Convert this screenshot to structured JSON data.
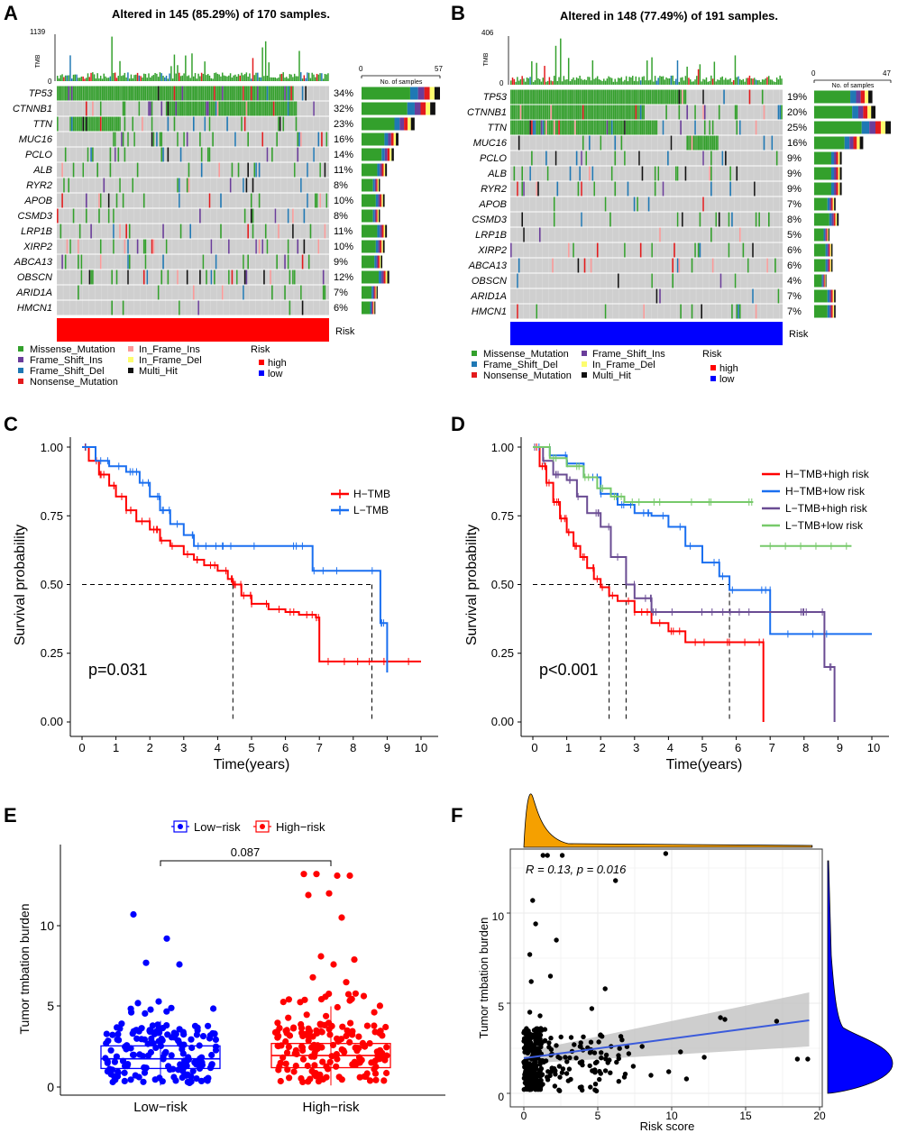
{
  "colors": {
    "missense": "#33a02c",
    "frame_shift_ins": "#6a3d9a",
    "frame_shift_del": "#1f78b4",
    "nonsense": "#e31a1c",
    "in_frame_ins": "#fb9a99",
    "in_frame_del": "#fdfd6e",
    "multi_hit": "#111111",
    "grey_cell": "#cfcfcf",
    "risk_high": "#ff0000",
    "risk_low": "#0000ff",
    "km_red": "#ff0000",
    "km_blue": "#1a6ff0",
    "km_purple": "#6a4c93",
    "km_green": "#77c96a",
    "density_orange": "#f5a000",
    "density_blue": "#0000ff",
    "regression_line": "#3b5bdb",
    "ci_band": "#bdbdbd"
  },
  "chart_data": [
    {
      "panel": "A",
      "type": "heatmap",
      "title": "Altered in 145 (85.29%) of 170 samples.",
      "tmb_label": "TMB",
      "tmb_max": "1139",
      "tmb_min": "0",
      "bar_axis_title": "No. of samples",
      "bar_axis_min": "0",
      "bar_axis_max": "57",
      "genes": [
        "TP53",
        "CTNNB1",
        "TTN",
        "MUC16",
        "PCLO",
        "ALB",
        "RYR2",
        "APOB",
        "CSMD3",
        "LRP1B",
        "XIRP2",
        "ABCA13",
        "OBSCN",
        "ARID1A",
        "HMCN1"
      ],
      "percents": [
        "34%",
        "32%",
        "23%",
        "16%",
        "14%",
        "11%",
        "8%",
        "10%",
        "8%",
        "11%",
        "10%",
        "9%",
        "12%",
        "7%",
        "6%"
      ],
      "risk_label": "Risk",
      "risk_group": "high",
      "legend": {
        "col1": [
          "Missense_Mutation",
          "Frame_Shift_Ins",
          "Frame_Shift_Del",
          "Nonsense_Mutation"
        ],
        "col2": [
          "In_Frame_Ins",
          "In_Frame_Del",
          "Multi_Hit"
        ],
        "risk_title": "Risk",
        "risk_items": [
          "high",
          "low"
        ]
      }
    },
    {
      "panel": "B",
      "type": "heatmap",
      "title": "Altered in 148 (77.49%) of 191 samples.",
      "tmb_label": "TMB",
      "tmb_max": "406",
      "tmb_min": "0",
      "bar_axis_title": "No. of samples",
      "bar_axis_min": "0",
      "bar_axis_max": "47",
      "genes": [
        "TP53",
        "CTNNB1",
        "TTN",
        "MUC16",
        "PCLO",
        "ALB",
        "RYR2",
        "APOB",
        "CSMD3",
        "LRP1B",
        "XIRP2",
        "ABCA13",
        "OBSCN",
        "ARID1A",
        "HMCN1"
      ],
      "percents": [
        "19%",
        "20%",
        "25%",
        "16%",
        "9%",
        "9%",
        "9%",
        "7%",
        "8%",
        "5%",
        "6%",
        "6%",
        "4%",
        "7%",
        "7%"
      ],
      "risk_label": "Risk",
      "risk_group": "low",
      "legend": {
        "col1": [
          "Missense_Mutation",
          "Frame_Shift_Del",
          "Nonsense_Mutation"
        ],
        "col2": [
          "Frame_Shift_Ins",
          "In_Frame_Del",
          "Multi_Hit"
        ],
        "risk_title": "Risk",
        "risk_items": [
          "high",
          "low"
        ]
      }
    },
    {
      "panel": "C",
      "type": "line",
      "xlabel": "Time(years)",
      "ylabel": "Survival probability",
      "xlim": [
        0,
        10.5
      ],
      "ylim": [
        0,
        1
      ],
      "x_ticks": [
        "0",
        "1",
        "2",
        "3",
        "4",
        "5",
        "6",
        "7",
        "8",
        "9",
        "10"
      ],
      "y_ticks": [
        "0.00",
        "0.25",
        "0.50",
        "0.75",
        "1.00"
      ],
      "pvalue": "p=0.031",
      "median_times": [
        4.45,
        8.55
      ],
      "series": [
        {
          "name": "H−TMB",
          "color": "#ff0000",
          "x": [
            0,
            0.2,
            0.5,
            0.8,
            1.0,
            1.3,
            1.6,
            2.0,
            2.3,
            2.6,
            3.0,
            3.3,
            3.6,
            4.0,
            4.3,
            4.45,
            4.7,
            5.0,
            5.5,
            6.0,
            6.4,
            6.9,
            7.0,
            8.0,
            9.0,
            10.0
          ],
          "y": [
            1.0,
            0.95,
            0.9,
            0.86,
            0.82,
            0.77,
            0.73,
            0.7,
            0.66,
            0.64,
            0.61,
            0.59,
            0.57,
            0.55,
            0.52,
            0.5,
            0.46,
            0.43,
            0.41,
            0.4,
            0.39,
            0.38,
            0.22,
            0.22,
            0.22,
            0.22
          ]
        },
        {
          "name": "L−TMB",
          "color": "#1a6ff0",
          "x": [
            0,
            0.4,
            0.8,
            1.3,
            1.7,
            2.0,
            2.3,
            2.6,
            3.0,
            3.3,
            4.0,
            5.0,
            6.0,
            6.8,
            7.5,
            8.5,
            8.8,
            9.0
          ],
          "y": [
            1.0,
            0.95,
            0.93,
            0.91,
            0.87,
            0.82,
            0.77,
            0.72,
            0.68,
            0.64,
            0.64,
            0.64,
            0.64,
            0.55,
            0.55,
            0.55,
            0.36,
            0.18
          ]
        }
      ]
    },
    {
      "panel": "D",
      "type": "line",
      "xlabel": "Time(years)",
      "ylabel": "Survival probability",
      "xlim": [
        0,
        10.5
      ],
      "ylim": [
        0,
        1
      ],
      "x_ticks": [
        "0",
        "1",
        "2",
        "3",
        "4",
        "5",
        "6",
        "7",
        "8",
        "9",
        "10"
      ],
      "y_ticks": [
        "0.00",
        "0.25",
        "0.50",
        "0.75",
        "1.00"
      ],
      "pvalue": "p<0.001",
      "median_times": [
        2.25,
        2.75,
        5.8
      ],
      "series": [
        {
          "name": "H−TMB+high risk",
          "color": "#ff0000",
          "x": [
            0,
            0.2,
            0.4,
            0.6,
            0.8,
            1.0,
            1.2,
            1.4,
            1.6,
            1.8,
            2.0,
            2.25,
            2.5,
            3.0,
            3.5,
            4.0,
            4.5,
            5.0,
            6.0,
            6.8,
            6.8
          ],
          "y": [
            1.0,
            0.93,
            0.87,
            0.8,
            0.74,
            0.69,
            0.64,
            0.6,
            0.56,
            0.52,
            0.49,
            0.46,
            0.44,
            0.4,
            0.36,
            0.33,
            0.29,
            0.29,
            0.29,
            0.29,
            0.0
          ]
        },
        {
          "name": "H−TMB+low risk",
          "color": "#1a6ff0",
          "x": [
            0,
            0.5,
            1.0,
            1.5,
            2.0,
            2.5,
            3.0,
            3.5,
            4.0,
            4.5,
            5.0,
            5.5,
            5.8,
            6.5,
            7.0,
            8.0,
            10.0
          ],
          "y": [
            1.0,
            0.97,
            0.94,
            0.89,
            0.83,
            0.79,
            0.76,
            0.75,
            0.71,
            0.64,
            0.58,
            0.53,
            0.48,
            0.48,
            0.32,
            0.32,
            0.32
          ]
        },
        {
          "name": "L−TMB+high risk",
          "color": "#6a4c93",
          "x": [
            0,
            0.3,
            0.6,
            1.0,
            1.3,
            1.6,
            2.0,
            2.3,
            2.75,
            3.0,
            3.5,
            4.0,
            5.0,
            6.0,
            7.0,
            8.0,
            8.6,
            8.9
          ],
          "y": [
            1.0,
            0.95,
            0.9,
            0.88,
            0.82,
            0.76,
            0.71,
            0.6,
            0.5,
            0.45,
            0.4,
            0.4,
            0.4,
            0.4,
            0.4,
            0.4,
            0.2,
            0.0
          ]
        },
        {
          "name": "L−TMB+low risk",
          "color": "#77c96a",
          "x": [
            0,
            0.5,
            1.0,
            1.5,
            1.9,
            2.3,
            2.7,
            3.0,
            4.0,
            5.0,
            6.0,
            6.5
          ],
          "y": [
            1.0,
            0.96,
            0.93,
            0.89,
            0.85,
            0.82,
            0.8,
            0.8,
            0.8,
            0.8,
            0.8,
            0.8
          ]
        }
      ],
      "extra_segment": {
        "series": "L−TMB+low risk",
        "x": [
          6.7,
          9.4
        ],
        "y": [
          0.64,
          0.64
        ]
      }
    },
    {
      "panel": "E",
      "type": "scatter",
      "subtype": "boxplot",
      "ylabel": "Tumor tmbation burden",
      "categories": [
        "Low−risk",
        "High−risk"
      ],
      "legend": [
        "Low−risk",
        "High−risk"
      ],
      "ylim": [
        0,
        14
      ],
      "y_ticks": [
        "0",
        "5",
        "10"
      ],
      "comparison_p": "0.087",
      "boxes": [
        {
          "name": "Low−risk",
          "color": "#0000ff",
          "q1": 1.15,
          "median": 1.75,
          "q3": 2.55,
          "whisker_low": 0.1,
          "whisker_high": 4.1
        },
        {
          "name": "High−risk",
          "color": "#ff0000",
          "q1": 1.2,
          "median": 1.95,
          "q3": 2.7,
          "whisker_low": 0.1,
          "whisker_high": 5.0
        }
      ],
      "outliers": {
        "Low−risk": [
          10.7,
          9.2,
          7.7,
          7.6,
          5.3,
          5.2,
          4.9,
          4.8
        ],
        "High−risk": [
          13.2,
          13.1,
          13.2,
          13.1,
          12.0,
          11.9,
          10.5,
          8.1,
          7.9,
          7.6,
          6.8,
          6.5,
          5.6,
          5.4
        ]
      }
    },
    {
      "panel": "F",
      "type": "scatter",
      "xlabel": "Risk score",
      "ylabel": "Tumor tmbation burden",
      "xlim": [
        -1,
        20.5
      ],
      "ylim": [
        -0.4,
        14
      ],
      "x_ticks": [
        "0",
        "5",
        "10",
        "15",
        "20"
      ],
      "y_ticks": [
        "0",
        "5",
        "10"
      ],
      "annotation": "R = 0.13, p = 0.016",
      "regression": {
        "x": [
          0,
          19.3
        ],
        "y": [
          1.95,
          4.05
        ]
      },
      "points": {
        "x": [
          1.3,
          1.6,
          2.6,
          9.6,
          0.6,
          0.8,
          0.4,
          6.2,
          2.2,
          0.5,
          0.4,
          5.5,
          1.8,
          1.1,
          0.7,
          4.6,
          0.9,
          1.4,
          3.2,
          4.0,
          7.1,
          13.3,
          13.6,
          17.1,
          19.2,
          18.5,
          11.0,
          9.8,
          8.0,
          6.4,
          5.2,
          3.8,
          2.8,
          1.9,
          1.2,
          0.3,
          0.2,
          0.9,
          1.5,
          2.4,
          3.4,
          4.8,
          6.8,
          8.6,
          10.6,
          12.2,
          5.9,
          7.4,
          2.1,
          0.6,
          1.1,
          1.7,
          2.9,
          0.4,
          0.8
        ],
        "y": [
          13.2,
          13.2,
          13.2,
          13.3,
          10.7,
          9.4,
          7.7,
          11.8,
          8.5,
          6.2,
          4.5,
          5.8,
          6.5,
          4.3,
          3.5,
          4.7,
          3.0,
          2.9,
          3.1,
          2.4,
          2.2,
          4.2,
          4.1,
          4.0,
          1.9,
          1.9,
          0.8,
          1.2,
          2.6,
          2.1,
          1.1,
          1.7,
          2.0,
          1.4,
          1.0,
          0.8,
          2.6,
          2.2,
          1.8,
          1.5,
          2.7,
          1.3,
          0.9,
          1.0,
          2.3,
          2.0,
          2.6,
          1.5,
          0.4,
          0.3,
          1.6,
          2.8,
          1.1,
          3.3,
          0.6
        ]
      },
      "cluster": {
        "x_max": 1.2,
        "y_min": 0.2,
        "y_max": 3.6,
        "n": 240
      }
    }
  ]
}
